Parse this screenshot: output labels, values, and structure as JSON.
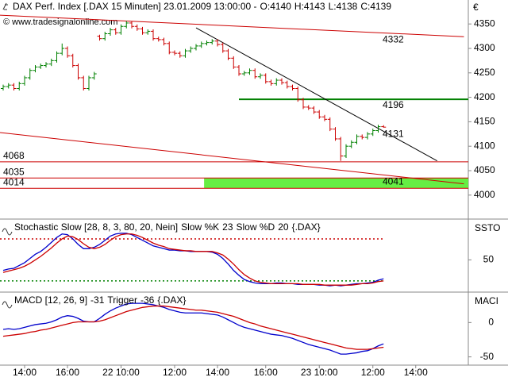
{
  "chart_data": [
    {
      "type": "ohlc",
      "title": "DAX Perf. Index [.DAX  15 Minuten] 23.01.2009 13:00:00 -",
      "ohlc_labels": [
        "O:4140",
        "H:4143",
        "L:4138",
        "C:4139"
      ],
      "watermark": "© www.tradesignalonline.com",
      "currency": "€",
      "categories": [
        null,
        null,
        null,
        null,
        "14:00",
        null,
        null,
        null,
        null,
        null,
        null,
        null,
        "16:00",
        null,
        null,
        null,
        null,
        null,
        null,
        null,
        null,
        null,
        "22 10:00",
        null,
        null,
        null,
        null,
        null,
        null,
        null,
        null,
        null,
        "12:00",
        null,
        null,
        null,
        null,
        null,
        null,
        null,
        "14:00",
        null,
        null,
        null,
        null,
        null,
        null,
        null,
        null,
        "16:00",
        null,
        null,
        null,
        null,
        null,
        null,
        null,
        null,
        null,
        "23 10:00",
        null,
        null,
        null,
        null,
        null,
        null,
        null,
        null,
        null,
        "12:00",
        null,
        null,
        null,
        null,
        null,
        null,
        null,
        "14:00",
        null,
        null,
        null,
        null,
        null,
        null,
        null,
        null,
        null
      ],
      "open": [
        4218,
        4222,
        4225,
        4218,
        4228,
        4240,
        4255,
        4262,
        4265,
        4268,
        4275,
        4290,
        4300,
        4285,
        4265,
        4240,
        4218,
        4240,
        4325,
        4320,
        4330,
        4338,
        4332,
        4345,
        4352,
        4345,
        4340,
        4332,
        4335,
        4320,
        4318,
        4310,
        4292,
        4290,
        4285,
        4295,
        4300,
        4305,
        4310,
        4312,
        4315,
        4308,
        4295,
        4280,
        4262,
        4248,
        4250,
        4255,
        4242,
        4245,
        4232,
        4228,
        4235,
        4230,
        4222,
        4218,
        4195,
        4180,
        4178,
        4170,
        4160,
        4155,
        4135,
        4115,
        4080,
        4100,
        4108,
        4120,
        4118,
        4125,
        4132,
        4140,
        null,
        null,
        null,
        null,
        null,
        null,
        null,
        null,
        null,
        null,
        null,
        null,
        null,
        null,
        null
      ],
      "high": [
        4226,
        4229,
        4229,
        4232,
        4244,
        4259,
        4266,
        4269,
        4272,
        4279,
        4294,
        4310,
        4304,
        4289,
        4269,
        4244,
        4244,
        4252,
        4328,
        4334,
        4342,
        4342,
        4349,
        4356,
        4356,
        4349,
        4344,
        4339,
        4339,
        4324,
        4322,
        4314,
        4296,
        4294,
        4299,
        4304,
        4309,
        4314,
        4316,
        4319,
        4319,
        4312,
        4299,
        4284,
        4266,
        4254,
        4259,
        4259,
        4249,
        4249,
        4236,
        4239,
        4239,
        4234,
        4226,
        4222,
        4199,
        4184,
        4182,
        4174,
        4164,
        4159,
        4139,
        4119,
        4104,
        4112,
        4124,
        4124,
        4129,
        4136,
        4144,
        4143,
        null,
        null,
        null,
        null,
        null,
        null,
        null,
        null,
        null,
        null,
        null,
        null,
        null,
        null,
        null
      ],
      "low": [
        4214,
        4218,
        4214,
        4214,
        4224,
        4236,
        4251,
        4258,
        4261,
        4264,
        4271,
        4286,
        4281,
        4261,
        4236,
        4214,
        4214,
        4236,
        4316,
        4316,
        4326,
        4328,
        4328,
        4341,
        4341,
        4336,
        4328,
        4328,
        4316,
        4314,
        4306,
        4288,
        4286,
        4281,
        4281,
        4291,
        4296,
        4301,
        4306,
        4308,
        4304,
        4291,
        4276,
        4258,
        4244,
        4244,
        4246,
        4238,
        4238,
        4228,
        4224,
        4224,
        4226,
        4218,
        4214,
        4191,
        4176,
        4174,
        4166,
        4156,
        4151,
        4131,
        4111,
        4070,
        4076,
        4096,
        4104,
        4114,
        4114,
        4121,
        4128,
        4138,
        null,
        null,
        null,
        null,
        null,
        null,
        null,
        null,
        null,
        null,
        null,
        null,
        null,
        null,
        null
      ],
      "close": [
        4222,
        4225,
        4218,
        4228,
        4240,
        4255,
        4262,
        4265,
        4268,
        4275,
        4290,
        4300,
        4285,
        4265,
        4240,
        4218,
        4240,
        4248,
        4320,
        4330,
        4338,
        4332,
        4345,
        4352,
        4345,
        4340,
        4332,
        4335,
        4320,
        4318,
        4310,
        4292,
        4290,
        4285,
        4295,
        4300,
        4305,
        4310,
        4312,
        4315,
        4308,
        4295,
        4280,
        4262,
        4248,
        4250,
        4255,
        4242,
        4245,
        4232,
        4228,
        4235,
        4230,
        4222,
        4218,
        4195,
        4180,
        4178,
        4170,
        4160,
        4155,
        4135,
        4115,
        4080,
        4100,
        4108,
        4120,
        4118,
        4125,
        4132,
        4140,
        4139,
        null,
        null,
        null,
        null,
        null,
        null,
        null,
        null,
        null,
        null,
        null,
        null,
        null,
        null,
        null
      ],
      "up_color": "#008000",
      "down_color": "#cc0000",
      "ylim": [
        3951,
        4399
      ],
      "yticks": [
        4000,
        4050,
        4100,
        4150,
        4200,
        4250,
        4300,
        4350
      ],
      "hlines": [
        {
          "value": 4196,
          "color": "#008000",
          "from": 44,
          "label_side": "right"
        },
        {
          "value": 4068,
          "color": "#cc0000",
          "from": 0,
          "label_side": "left"
        },
        {
          "value": 4035,
          "color": "#cc0000",
          "from": 0,
          "label_side": "left"
        },
        {
          "value": 4014,
          "color": "#cc0000",
          "from": 0,
          "label_side": "left"
        }
      ],
      "zone": {
        "from": 37.5,
        "low": 4014,
        "high": 4035,
        "color": "#66ee44"
      },
      "trendlines": [
        {
          "color": "#cc0000",
          "start": [
            0,
            4368
          ],
          "end": [
            86,
            4324
          ],
          "label": 4332
        },
        {
          "color": "#000000",
          "start": [
            36,
            4342
          ],
          "end": [
            81,
            4070
          ],
          "label": 4131
        },
        {
          "color": "#cc0000",
          "start": [
            0,
            4128
          ],
          "end": [
            86,
            4023
          ],
          "label": 4041
        }
      ]
    },
    {
      "type": "line",
      "title": "Stochastic Slow [28, 8, 3, 80, 20, Nein]",
      "suffix": "{.DAX}",
      "axis_label": "SSTO",
      "series": [
        {
          "name": "Slow %K",
          "color": "#0000cc",
          "values": [
            35,
            37,
            38,
            42,
            46,
            52,
            58,
            62,
            68,
            75,
            82,
            87,
            86,
            80,
            72,
            66,
            66,
            68,
            72,
            78,
            84,
            87,
            88,
            88,
            86,
            82,
            78,
            74,
            70,
            68,
            66,
            64,
            64,
            63,
            63,
            62,
            62,
            62,
            62,
            61,
            58,
            52,
            44,
            35,
            28,
            22,
            19,
            17,
            16,
            16,
            16,
            17,
            17,
            16,
            16,
            15,
            15,
            15,
            15,
            14,
            14,
            13,
            14,
            13,
            14,
            15,
            16,
            16,
            17,
            18,
            21,
            23,
            null,
            null,
            null,
            null,
            null,
            null,
            null,
            null,
            null,
            null,
            null,
            null,
            null,
            null,
            null
          ]
        },
        {
          "name": "Slow %D",
          "color": "#cc0000",
          "values": [
            32,
            34,
            36,
            38,
            41,
            45,
            50,
            55,
            61,
            67,
            74,
            80,
            84,
            83,
            79,
            73,
            68,
            66,
            68,
            72,
            78,
            83,
            86,
            87,
            87,
            85,
            82,
            78,
            74,
            71,
            69,
            66,
            65,
            64,
            63,
            63,
            62,
            62,
            62,
            62,
            60,
            57,
            51,
            44,
            36,
            29,
            24,
            20,
            18,
            17,
            16,
            16,
            16,
            16,
            16,
            16,
            15,
            15,
            15,
            15,
            14,
            14,
            14,
            14,
            14,
            14,
            15,
            16,
            16,
            17,
            19,
            20,
            null,
            null,
            null,
            null,
            null,
            null,
            null,
            null,
            null,
            null,
            null,
            null,
            null,
            null,
            null
          ]
        }
      ],
      "levels": [
        {
          "value": 80,
          "color": "#cc0000"
        },
        {
          "value": 20,
          "color": "#008000"
        }
      ],
      "ylim": [
        4,
        106
      ],
      "yticks": [
        50
      ]
    },
    {
      "type": "line",
      "title": "MACD [12, 26, 9]",
      "suffix": "{.DAX}",
      "axis_label": "MACI",
      "series": [
        {
          "color": "#0000cc",
          "values": [
            -10,
            -9,
            -10,
            -9,
            -7,
            -5,
            -3,
            -2,
            -1,
            1,
            4,
            8,
            10,
            9,
            6,
            2,
            1,
            1,
            6,
            12,
            17,
            21,
            24,
            27,
            28,
            28,
            28,
            27,
            26,
            24,
            22,
            19,
            17,
            15,
            14,
            14,
            14,
            14,
            13,
            12,
            11,
            8,
            4,
            0,
            -4,
            -7,
            -9,
            -11,
            -13,
            -15,
            -17,
            -18,
            -19,
            -21,
            -23,
            -26,
            -29,
            -32,
            -34,
            -36,
            -38,
            -40,
            -43,
            -46,
            -46,
            -45,
            -44,
            -42,
            -41,
            -38,
            -34,
            -31,
            null,
            null,
            null,
            null,
            null,
            null,
            null,
            null,
            null,
            null,
            null,
            null,
            null,
            null,
            null
          ]
        },
        {
          "name": "Trigger",
          "color": "#cc0000",
          "values": [
            -20,
            -19,
            -18,
            -17,
            -16,
            -14,
            -13,
            -11,
            -10,
            -8,
            -6,
            -4,
            -2,
            0,
            1,
            1,
            1,
            1,
            2,
            4,
            7,
            10,
            13,
            16,
            18,
            20,
            22,
            23,
            24,
            24,
            24,
            23,
            22,
            21,
            20,
            19,
            18,
            18,
            17,
            16,
            15,
            13,
            11,
            9,
            6,
            3,
            0,
            -2,
            -5,
            -7,
            -9,
            -11,
            -13,
            -15,
            -17,
            -19,
            -21,
            -23,
            -25,
            -27,
            -29,
            -31,
            -33,
            -35,
            -37,
            -38,
            -39,
            -39,
            -39,
            -38,
            -37,
            -36,
            null,
            null,
            null,
            null,
            null,
            null,
            null,
            null,
            null,
            null,
            null,
            null,
            null,
            null,
            null
          ]
        }
      ],
      "ylim": [
        -62,
        42
      ],
      "yticks": [
        0,
        -50
      ]
    }
  ]
}
